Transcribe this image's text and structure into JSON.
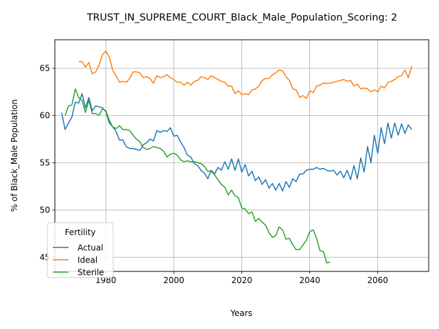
{
  "chart_data": {
    "type": "line",
    "title": "TRUST_IN_SUPREME_COURT_Black_Male_Population_Scoring: 2",
    "xlabel": "Years",
    "ylabel": "% of Black_Male Population",
    "xlim": [
      1965,
      2075
    ],
    "ylim": [
      43.5,
      68.0
    ],
    "xticks": [
      1980,
      2000,
      2020,
      2040,
      2060
    ],
    "yticks": [
      45,
      50,
      55,
      60,
      65
    ],
    "grid": true,
    "legend": {
      "title": "Fertility",
      "placement": "lower-left"
    },
    "series": [
      {
        "name": "Actual",
        "color": "#1f77b4",
        "x": [
          1967,
          1968,
          1969,
          1970,
          1971,
          1972,
          1973,
          1974,
          1975,
          1976,
          1977,
          1978,
          1979,
          1980,
          1981,
          1982,
          1983,
          1984,
          1985,
          1986,
          1987,
          1988,
          1989,
          1990,
          1991,
          1992,
          1993,
          1994,
          1995,
          1996,
          1997,
          1998,
          1999,
          2000,
          2001,
          2002,
          2003,
          2004,
          2005,
          2006,
          2007,
          2008,
          2009,
          2010,
          2011,
          2012,
          2013,
          2014,
          2015,
          2016,
          2017,
          2018,
          2019,
          2020,
          2021,
          2022,
          2023,
          2024,
          2025,
          2026,
          2027,
          2028,
          2029,
          2030,
          2031,
          2032,
          2033,
          2034,
          2035,
          2036,
          2037,
          2038,
          2039,
          2040,
          2041,
          2042,
          2043,
          2044,
          2045,
          2046,
          2047,
          2048,
          2049,
          2050,
          2051,
          2052,
          2053,
          2054,
          2055,
          2056,
          2057,
          2058,
          2059,
          2060,
          2061,
          2062,
          2063,
          2064,
          2065,
          2066,
          2067,
          2068,
          2069,
          2070
        ],
        "y": [
          60.3,
          58.5,
          59.2,
          59.8,
          61.4,
          61.3,
          62.3,
          60.8,
          61.9,
          60.5,
          61.0,
          60.9,
          60.8,
          60.4,
          59.2,
          58.8,
          58.3,
          57.4,
          57.4,
          56.7,
          56.5,
          56.5,
          56.4,
          56.3,
          56.9,
          57.1,
          57.5,
          57.3,
          58.4,
          58.2,
          58.4,
          58.3,
          58.7,
          57.8,
          57.9,
          57.2,
          56.6,
          55.8,
          55.6,
          54.9,
          54.7,
          54.2,
          53.9,
          53.3,
          54.2,
          53.8,
          54.5,
          54.2,
          55.1,
          54.3,
          55.4,
          54.2,
          55.4,
          54.0,
          54.8,
          53.6,
          54.1,
          53.1,
          53.5,
          52.7,
          53.2,
          52.3,
          52.8,
          52.1,
          52.8,
          52.0,
          53.0,
          52.4,
          53.3,
          53.0,
          53.8,
          53.8,
          54.2,
          54.3,
          54.3,
          54.5,
          54.3,
          54.4,
          54.2,
          54.1,
          54.2,
          53.7,
          54.1,
          53.4,
          54.2,
          53.2,
          54.7,
          53.3,
          55.5,
          54.0,
          56.7,
          55.0,
          57.9,
          56.0,
          58.7,
          57.0,
          59.2,
          57.6,
          59.2,
          57.9,
          59.1,
          58.1,
          59.0,
          58.5
        ]
      },
      {
        "name": "Ideal",
        "color": "#ff7f0e",
        "x": [
          1972,
          1973,
          1974,
          1975,
          1976,
          1977,
          1978,
          1979,
          1980,
          1981,
          1982,
          1983,
          1984,
          1985,
          1986,
          1987,
          1988,
          1989,
          1990,
          1991,
          1992,
          1993,
          1994,
          1995,
          1996,
          1997,
          1998,
          1999,
          2000,
          2001,
          2002,
          2003,
          2004,
          2005,
          2006,
          2007,
          2008,
          2009,
          2010,
          2011,
          2012,
          2013,
          2014,
          2015,
          2016,
          2017,
          2018,
          2019,
          2020,
          2021,
          2022,
          2023,
          2024,
          2025,
          2026,
          2027,
          2028,
          2029,
          2030,
          2031,
          2032,
          2033,
          2034,
          2035,
          2036,
          2037,
          2038,
          2039,
          2040,
          2041,
          2042,
          2043,
          2044,
          2045,
          2046,
          2047,
          2048,
          2049,
          2050,
          2051,
          2052,
          2053,
          2054,
          2055,
          2056,
          2057,
          2058,
          2059,
          2060,
          2061,
          2062,
          2063,
          2064,
          2065,
          2066,
          2067,
          2068,
          2069,
          2070
        ],
        "y": [
          65.7,
          65.7,
          65.1,
          65.6,
          64.4,
          64.6,
          65.3,
          66.4,
          66.8,
          66.2,
          64.8,
          64.2,
          63.5,
          63.6,
          63.5,
          63.9,
          64.6,
          64.6,
          64.5,
          64.0,
          64.1,
          63.9,
          63.4,
          64.2,
          64.0,
          64.1,
          64.3,
          64.0,
          63.8,
          63.5,
          63.5,
          63.2,
          63.5,
          63.2,
          63.6,
          63.7,
          64.1,
          64.0,
          63.8,
          64.2,
          64.0,
          63.8,
          63.6,
          63.5,
          63.1,
          63.1,
          62.3,
          62.6,
          62.2,
          62.3,
          62.2,
          62.7,
          62.8,
          63.1,
          63.7,
          63.9,
          63.9,
          64.3,
          64.5,
          64.8,
          64.7,
          64.1,
          63.7,
          62.8,
          62.7,
          61.9,
          62.1,
          61.8,
          62.6,
          62.4,
          63.1,
          63.2,
          63.4,
          63.4,
          63.4,
          63.5,
          63.6,
          63.7,
          63.8,
          63.6,
          63.7,
          63.1,
          63.3,
          62.8,
          62.9,
          62.8,
          62.5,
          62.7,
          62.5,
          63.1,
          62.9,
          63.5,
          63.6,
          63.8,
          64.1,
          64.2,
          64.8,
          64.0,
          65.2
        ]
      },
      {
        "name": "Sterile",
        "color": "#2ca02c",
        "x": [
          1968,
          1969,
          1970,
          1971,
          1972,
          1973,
          1974,
          1975,
          1976,
          1977,
          1978,
          1979,
          1980,
          1981,
          1982,
          1983,
          1984,
          1985,
          1986,
          1987,
          1988,
          1989,
          1990,
          1991,
          1992,
          1993,
          1994,
          1995,
          1996,
          1997,
          1998,
          1999,
          2000,
          2001,
          2002,
          2003,
          2004,
          2005,
          2006,
          2007,
          2008,
          2009,
          2010,
          2011,
          2012,
          2013,
          2014,
          2015,
          2016,
          2017,
          2018,
          2019,
          2020,
          2021,
          2022,
          2023,
          2024,
          2025,
          2026,
          2027,
          2028,
          2029,
          2030,
          2031,
          2032,
          2033,
          2034,
          2035,
          2036,
          2037,
          2038,
          2039,
          2040,
          2041,
          2042,
          2043,
          2044,
          2045,
          2046
        ],
        "y": [
          60.0,
          61.0,
          61.1,
          62.8,
          61.9,
          61.6,
          60.3,
          61.6,
          60.2,
          60.2,
          60.0,
          60.7,
          60.5,
          59.5,
          58.8,
          58.6,
          58.9,
          58.5,
          58.5,
          58.4,
          57.9,
          57.5,
          57.2,
          56.6,
          56.4,
          56.5,
          56.7,
          56.6,
          56.5,
          56.2,
          55.6,
          55.9,
          56.0,
          55.8,
          55.3,
          55.1,
          55.2,
          55.1,
          55.1,
          55.0,
          54.9,
          54.6,
          54.1,
          54.1,
          53.7,
          53.2,
          52.7,
          52.4,
          51.6,
          52.1,
          51.5,
          51.3,
          50.2,
          50.1,
          49.6,
          49.8,
          48.8,
          49.1,
          48.7,
          48.4,
          47.6,
          47.1,
          47.3,
          48.2,
          47.9,
          46.9,
          47.0,
          46.3,
          45.8,
          45.8,
          46.3,
          46.8,
          47.7,
          47.9,
          47.0,
          45.7,
          45.6,
          44.4,
          44.5
        ]
      }
    ]
  }
}
